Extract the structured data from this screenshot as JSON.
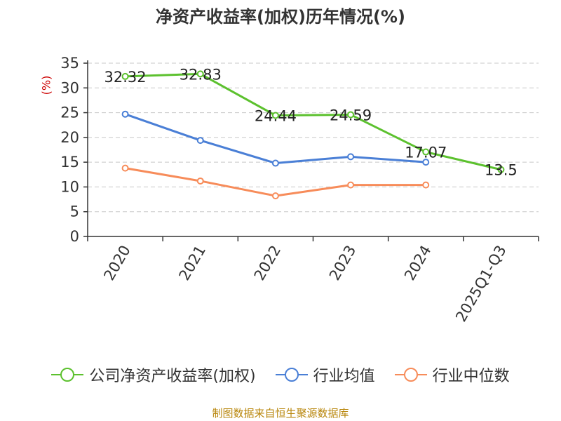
{
  "title": "净资产收益率(加权)历年情况(%)",
  "footer": "制图数据来自恒生聚源数据库",
  "chart_data": {
    "type": "line",
    "title": "净资产收益率(加权)历年情况(%)",
    "ylabel": "(%)",
    "ylim": [
      0,
      35
    ],
    "yticks": [
      0,
      5,
      10,
      15,
      20,
      25,
      30,
      35
    ],
    "categories": [
      "2020",
      "2021",
      "2022",
      "2023",
      "2024",
      "2025Q1-Q3"
    ],
    "grid": true,
    "legend_position": "bottom",
    "series": [
      {
        "name": "公司净资产收益率(加权)",
        "color": "#5cc12e",
        "values": [
          32.32,
          32.83,
          24.44,
          24.59,
          17.07,
          13.5
        ],
        "labels": [
          "32.32",
          "32.83",
          "24.44",
          "24.59",
          "17.07",
          "13.5"
        ]
      },
      {
        "name": "行业均值",
        "color": "#4a7fd6",
        "values": [
          24.7,
          19.4,
          14.8,
          16.1,
          15.0,
          null
        ]
      },
      {
        "name": "行业中位数",
        "color": "#f78c5a",
        "values": [
          13.8,
          11.2,
          8.2,
          10.4,
          10.4,
          null
        ]
      }
    ]
  }
}
